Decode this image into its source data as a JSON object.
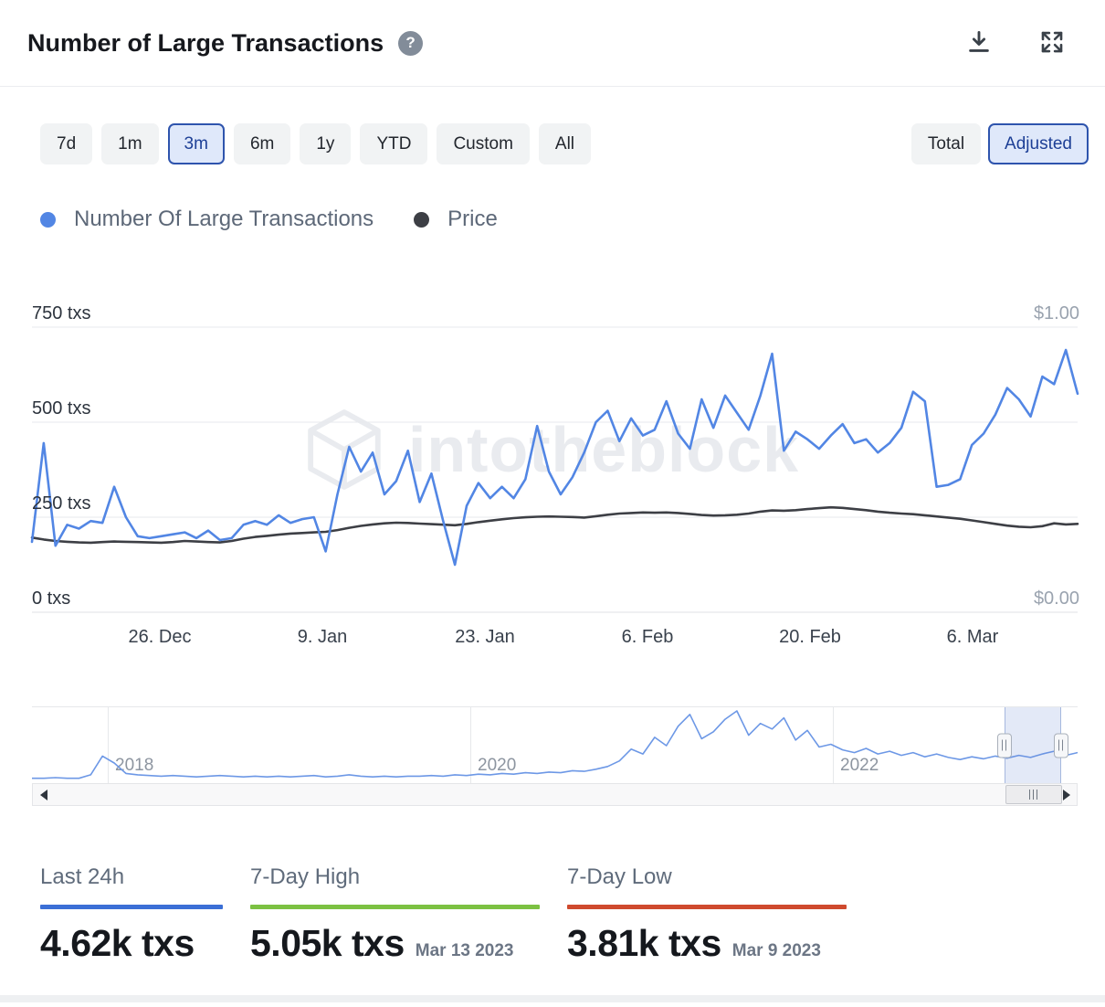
{
  "header": {
    "title": "Number of Large Transactions",
    "help_glyph": "?"
  },
  "toolbar": {
    "ranges": [
      {
        "label": "7d",
        "active": false
      },
      {
        "label": "1m",
        "active": false
      },
      {
        "label": "3m",
        "active": true
      },
      {
        "label": "6m",
        "active": false
      },
      {
        "label": "1y",
        "active": false
      },
      {
        "label": "YTD",
        "active": false
      },
      {
        "label": "Custom",
        "active": false
      },
      {
        "label": "All",
        "active": false
      }
    ],
    "modes": [
      {
        "label": "Total",
        "active": false
      },
      {
        "label": "Adjusted",
        "active": true
      }
    ]
  },
  "legend": [
    {
      "label": "Number Of Large Transactions",
      "color": "#5286e4"
    },
    {
      "label": "Price",
      "color": "#3d3f45"
    }
  ],
  "chart": {
    "watermark": "intotheblock",
    "y_left_labels": [
      "750 txs",
      "500 txs",
      "250 txs",
      "0 txs"
    ],
    "y_right_labels": [
      "$1.00",
      "$0.00"
    ],
    "x_labels": [
      "26. Dec",
      "9. Jan",
      "23. Jan",
      "6. Feb",
      "20. Feb",
      "6. Mar"
    ]
  },
  "chart_data": {
    "type": "line",
    "title": "Number of Large Transactions",
    "x_start": "2022-12-15",
    "x_end": "2023-03-14",
    "x_ticks": [
      "2022-12-26",
      "2023-01-09",
      "2023-01-23",
      "2023-02-06",
      "2023-02-20",
      "2023-03-06"
    ],
    "y_left": {
      "unit": "txs",
      "min": 0,
      "max": 750,
      "ticks": [
        0,
        250,
        500,
        750
      ]
    },
    "y_right": {
      "unit": "USD",
      "min": 0,
      "max": 1,
      "ticks": [
        0,
        1
      ]
    },
    "series": [
      {
        "name": "Number Of Large Transactions",
        "axis": "left",
        "unit": "txs",
        "color": "#5286e4",
        "values": [
          185,
          445,
          175,
          230,
          220,
          240,
          235,
          330,
          250,
          200,
          195,
          200,
          205,
          210,
          195,
          215,
          190,
          195,
          230,
          240,
          230,
          255,
          235,
          245,
          250,
          160,
          310,
          435,
          370,
          420,
          310,
          345,
          425,
          290,
          365,
          240,
          125,
          280,
          340,
          300,
          330,
          300,
          350,
          490,
          370,
          310,
          355,
          420,
          500,
          530,
          450,
          510,
          465,
          480,
          555,
          470,
          430,
          560,
          485,
          570,
          525,
          480,
          570,
          680,
          425,
          475,
          455,
          430,
          465,
          495,
          445,
          455,
          420,
          445,
          485,
          580,
          555,
          330,
          335,
          350,
          440,
          470,
          520,
          590,
          560,
          515,
          620,
          600,
          690,
          575
        ]
      },
      {
        "name": "Price",
        "axis": "right",
        "unit": "USD",
        "color": "#3d3f45",
        "values": [
          0.262,
          0.255,
          0.25,
          0.247,
          0.245,
          0.244,
          0.246,
          0.248,
          0.247,
          0.246,
          0.245,
          0.244,
          0.246,
          0.25,
          0.248,
          0.246,
          0.245,
          0.25,
          0.258,
          0.264,
          0.268,
          0.272,
          0.276,
          0.278,
          0.28,
          0.282,
          0.288,
          0.296,
          0.303,
          0.308,
          0.312,
          0.314,
          0.313,
          0.311,
          0.309,
          0.307,
          0.305,
          0.31,
          0.316,
          0.321,
          0.326,
          0.33,
          0.333,
          0.335,
          0.336,
          0.335,
          0.334,
          0.332,
          0.337,
          0.342,
          0.346,
          0.348,
          0.35,
          0.349,
          0.35,
          0.348,
          0.345,
          0.341,
          0.339,
          0.34,
          0.342,
          0.346,
          0.353,
          0.357,
          0.356,
          0.358,
          0.362,
          0.365,
          0.368,
          0.366,
          0.362,
          0.358,
          0.353,
          0.349,
          0.346,
          0.344,
          0.34,
          0.336,
          0.332,
          0.328,
          0.322,
          0.316,
          0.31,
          0.304,
          0.3,
          0.298,
          0.302,
          0.312,
          0.308,
          0.31
        ]
      }
    ],
    "navigator": {
      "range_start": "2017-05",
      "range_end": "2023-03",
      "values": [
        3,
        3,
        4,
        3,
        3,
        8,
        35,
        25,
        10,
        8,
        7,
        6,
        7,
        6,
        5,
        6,
        7,
        6,
        5,
        6,
        5,
        6,
        5,
        6,
        7,
        5,
        6,
        8,
        6,
        5,
        6,
        5,
        6,
        6,
        7,
        6,
        8,
        7,
        9,
        8,
        10,
        9,
        11,
        10,
        12,
        11,
        14,
        13,
        16,
        20,
        28,
        45,
        38,
        62,
        50,
        78,
        95,
        60,
        70,
        88,
        100,
        65,
        82,
        74,
        90,
        58,
        72,
        48,
        52,
        44,
        40,
        46,
        38,
        42,
        36,
        40,
        34,
        38,
        33,
        30,
        34,
        31,
        35,
        32,
        36,
        33,
        38,
        42,
        36,
        40
      ]
    }
  },
  "navigator": {
    "year_labels": [
      "2018",
      "2020",
      "2022"
    ],
    "selection": {
      "start": 0.93,
      "end": 0.984
    }
  },
  "stats": [
    {
      "label": "Last 24h",
      "value": "4.62k txs",
      "date": "",
      "accent": "#3b6fd6"
    },
    {
      "label": "7-Day High",
      "value": "5.05k txs",
      "date": "Mar 13 2023",
      "accent": "#7cc142"
    },
    {
      "label": "7-Day Low",
      "value": "3.81k txs",
      "date": "Mar 9 2023",
      "accent": "#cf4a2e"
    }
  ]
}
